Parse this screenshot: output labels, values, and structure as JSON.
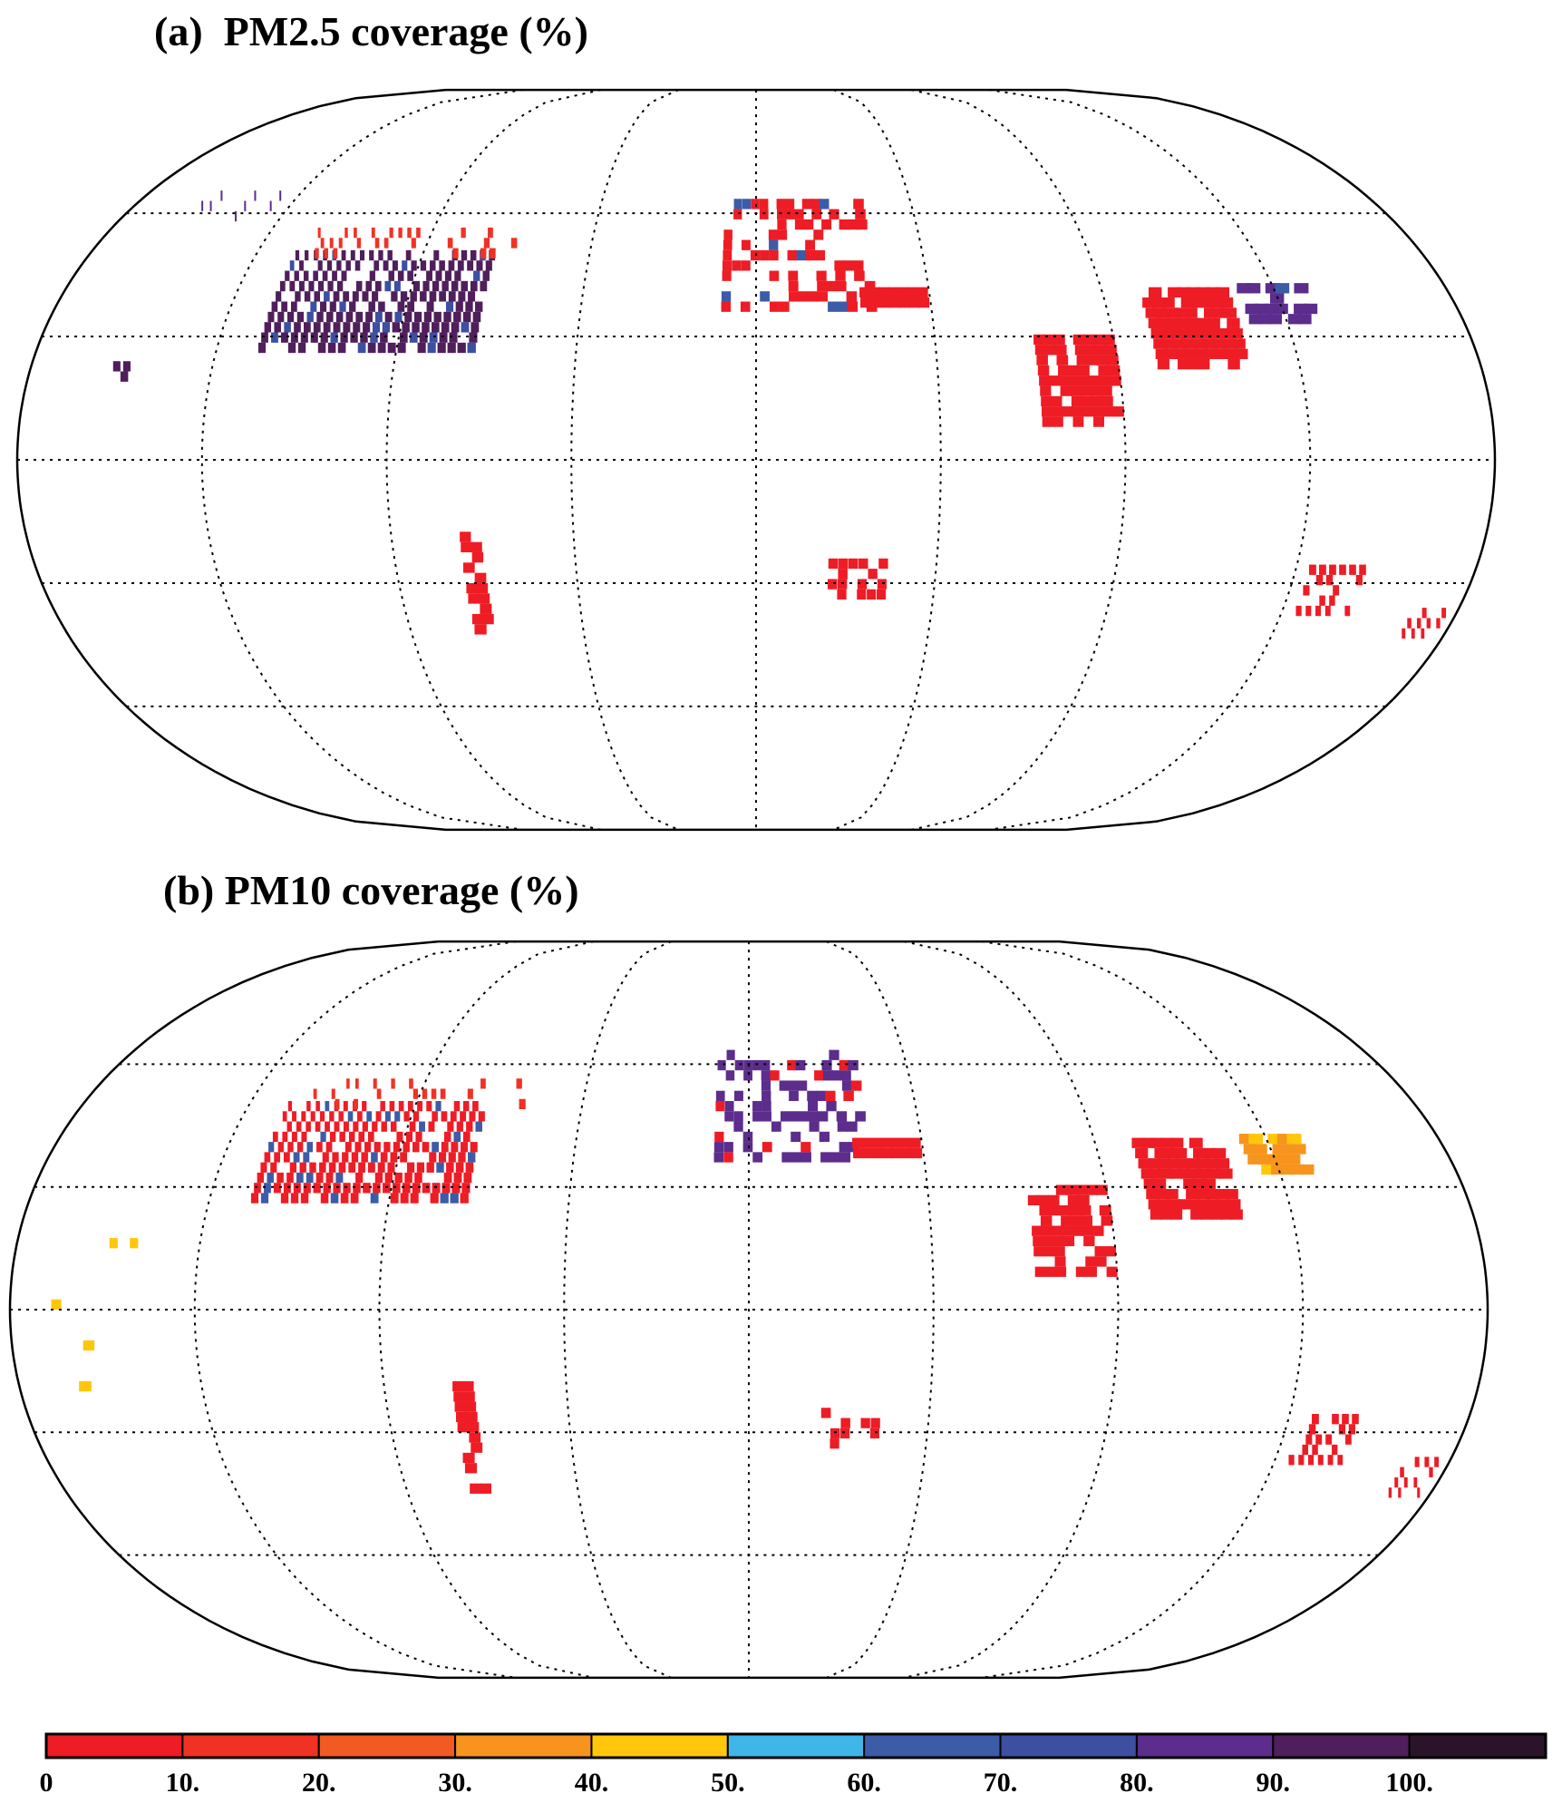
{
  "chart_data": [
    {
      "type": "heatmap",
      "panel": "a",
      "title": "(a)  PM2.5 coverage (%)",
      "projection": "Robinson",
      "grid": true,
      "graticule": {
        "lat_step_deg": 30,
        "lon_step_deg": 45
      },
      "regions": [
        {
          "name": "United States",
          "lon": [
            -125,
            -70
          ],
          "lat": [
            26,
            49
          ],
          "level": 9,
          "alt_level": 7,
          "density": 0.9
        },
        {
          "name": "Southern Canada",
          "lon": [
            -125,
            -62
          ],
          "lat": [
            49,
            56
          ],
          "level": 1,
          "density": 0.35
        },
        {
          "name": "Alaska",
          "lon": [
            -162,
            -140
          ],
          "lat": [
            58,
            65
          ],
          "level": 8,
          "density": 0.3
        },
        {
          "name": "Europe",
          "lon": [
            -9,
            30
          ],
          "lat": [
            36,
            62
          ],
          "level": 0,
          "alt_level": 6,
          "density": 0.45
        },
        {
          "name": "Turkey",
          "lon": [
            27,
            44
          ],
          "lat": [
            37,
            41
          ],
          "level": 0,
          "density": 0.95
        },
        {
          "name": "China",
          "lon": [
            100,
            122
          ],
          "lat": [
            22,
            42
          ],
          "level": 0,
          "density": 0.85
        },
        {
          "name": "India",
          "lon": [
            70,
            88
          ],
          "lat": [
            8,
            30
          ],
          "level": 0,
          "density": 0.75
        },
        {
          "name": "Japan-Korea",
          "lon": [
            126,
            142
          ],
          "lat": [
            33,
            42
          ],
          "level": 8,
          "alt_level": 6,
          "density": 0.6
        },
        {
          "name": "SE Australia",
          "lon": [
            138,
            153
          ],
          "lat": [
            -38,
            -27
          ],
          "level": 0,
          "density": 0.7
        },
        {
          "name": "New Zealand",
          "lon": [
            168,
            178
          ],
          "lat": [
            -46,
            -36
          ],
          "level": 0,
          "density": 0.7
        },
        {
          "name": "South Africa",
          "lon": [
            18,
            32
          ],
          "lat": [
            -34,
            -25
          ],
          "level": 0,
          "density": 0.55
        },
        {
          "name": "Chile",
          "lon": [
            -73,
            -70
          ],
          "lat": [
            -45,
            -18
          ],
          "level": 0,
          "density": 0.7
        },
        {
          "name": "Hawaii",
          "lon": [
            -160,
            -155
          ],
          "lat": [
            19,
            22
          ],
          "level": 9,
          "density": 0.8
        }
      ]
    },
    {
      "type": "heatmap",
      "panel": "b",
      "title": "(b) PM10 coverage (%)",
      "projection": "Robinson",
      "grid": true,
      "graticule": {
        "lat_step_deg": 30,
        "lon_step_deg": 45
      },
      "regions": [
        {
          "name": "United States",
          "lon": [
            -125,
            -70
          ],
          "lat": [
            26,
            49
          ],
          "level": 0,
          "alt_level": 6,
          "density": 0.88
        },
        {
          "name": "Southern Canada",
          "lon": [
            -125,
            -62
          ],
          "lat": [
            49,
            56
          ],
          "level": 1,
          "density": 0.25
        },
        {
          "name": "Europe",
          "lon": [
            -9,
            30
          ],
          "lat": [
            36,
            62
          ],
          "level": 8,
          "alt_level": 0,
          "density": 0.5
        },
        {
          "name": "Turkey",
          "lon": [
            27,
            44
          ],
          "lat": [
            37,
            41
          ],
          "level": 0,
          "density": 0.95
        },
        {
          "name": "China",
          "lon": [
            100,
            122
          ],
          "lat": [
            22,
            42
          ],
          "level": 0,
          "density": 0.85
        },
        {
          "name": "India",
          "lon": [
            70,
            88
          ],
          "lat": [
            8,
            30
          ],
          "level": 0,
          "density": 0.7
        },
        {
          "name": "Japan-Korea",
          "lon": [
            126,
            142
          ],
          "lat": [
            33,
            42
          ],
          "level": 3,
          "alt_level": 4,
          "density": 0.6
        },
        {
          "name": "SE Australia",
          "lon": [
            138,
            153
          ],
          "lat": [
            -38,
            -27
          ],
          "level": 0,
          "density": 0.65
        },
        {
          "name": "New Zealand",
          "lon": [
            168,
            178
          ],
          "lat": [
            -46,
            -36
          ],
          "level": 0,
          "density": 0.65
        },
        {
          "name": "South Africa",
          "lon": [
            18,
            32
          ],
          "lat": [
            -34,
            -25
          ],
          "level": 0,
          "density": 0.5
        },
        {
          "name": "Chile",
          "lon": [
            -73,
            -70
          ],
          "lat": [
            -45,
            -18
          ],
          "level": 0,
          "density": 0.7
        },
        {
          "name": "Pacific islands",
          "lon": [
            -175,
            -150
          ],
          "lat": [
            -20,
            20
          ],
          "level": 4,
          "alt_level": 6,
          "density": 0.03
        }
      ]
    }
  ],
  "colorbar": {
    "tick_labels": [
      "0",
      "10.",
      "20.",
      "30.",
      "40.",
      "50.",
      "60.",
      "70.",
      "80.",
      "90.",
      "100."
    ],
    "colors": [
      "#ee1c25",
      "#ef3224",
      "#f15a22",
      "#f7941d",
      "#ffc60b",
      "#3fb6e8",
      "#3c5ca8",
      "#3c4fa0",
      "#5c2d8c",
      "#4f1f5b",
      "#2b1429"
    ]
  }
}
